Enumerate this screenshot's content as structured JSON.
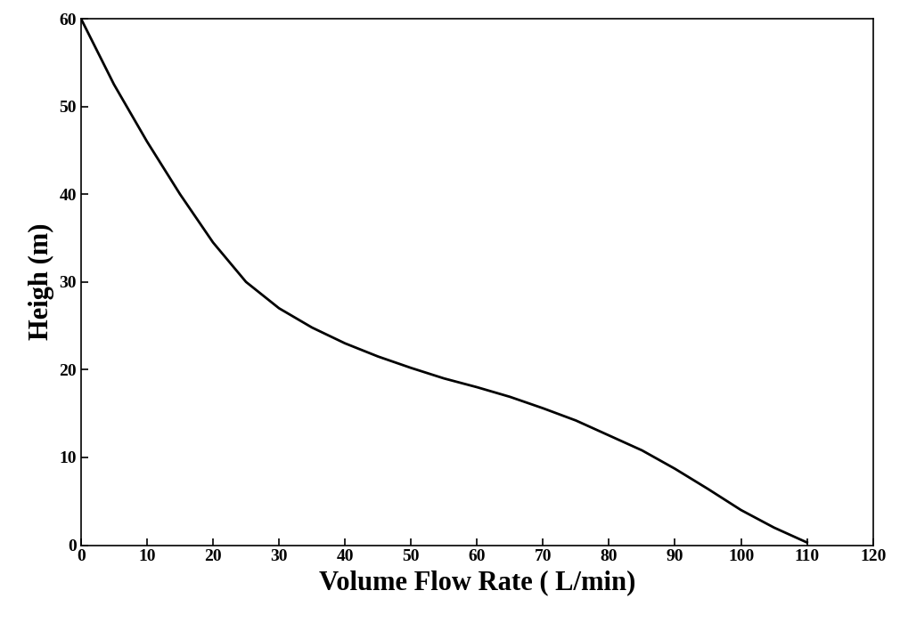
{
  "chart_data": {
    "type": "line",
    "x_label": "Volume Flow Rate ( L/min)",
    "y_label": "Heigh (m)",
    "x": [
      0,
      5,
      10,
      15,
      20,
      25,
      30,
      35,
      40,
      45,
      50,
      55,
      60,
      65,
      70,
      75,
      80,
      85,
      90,
      95,
      100,
      105,
      110
    ],
    "series": [
      {
        "name": null,
        "color": "#000000",
        "values": [
          60,
          52.5,
          46,
          40,
          34.5,
          30,
          27,
          24.8,
          23,
          21.5,
          20.2,
          19,
          18,
          16.9,
          15.6,
          14.2,
          12.5,
          10.8,
          8.7,
          6.4,
          4,
          2,
          0.3
        ]
      }
    ],
    "xlim": [
      0,
      120
    ],
    "xticks": [
      0,
      10,
      20,
      30,
      40,
      50,
      60,
      70,
      80,
      90,
      100,
      110,
      120
    ],
    "ylim": [
      0,
      60
    ],
    "yticks": [
      0,
      10,
      20,
      30,
      40,
      50,
      60
    ],
    "grid": false
  }
}
